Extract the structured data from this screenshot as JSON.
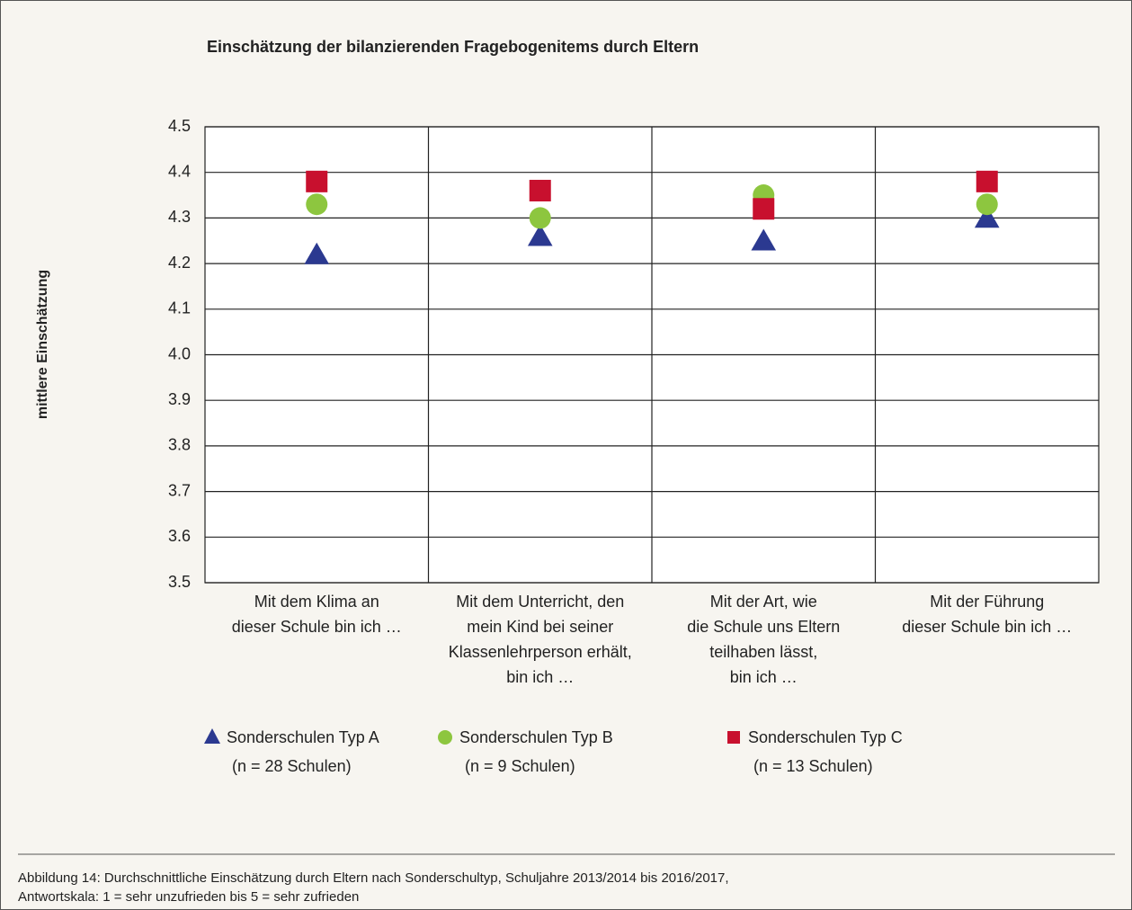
{
  "chart_data": {
    "type": "dot",
    "title": "Einschätzung der bilanzierenden Fragebogenitems durch Eltern",
    "y_label": "mittlere Einschätzung",
    "categories": [
      "Mit dem Klima an\ndieser Schule bin ich …",
      "Mit dem Unterricht, den\nmein Kind bei seiner\nKlassenlehrperson erhält,\nbin ich …",
      "Mit der Art, wie\ndie Schule uns Eltern\nteilhaben lässt,\nbin ich …",
      "Mit der Führung\ndieser Schule bin ich …"
    ],
    "series": [
      {
        "name": "Sonderschulen Typ A",
        "note": "(n = 28 Schulen)",
        "marker": "triangle",
        "color": "#2b3990",
        "values": [
          4.22,
          4.26,
          4.25,
          4.3
        ]
      },
      {
        "name": "Sonderschulen Typ B",
        "note": "(n = 9 Schulen)",
        "marker": "circle",
        "color": "#8dc63f",
        "values": [
          4.33,
          4.3,
          4.35,
          4.33
        ]
      },
      {
        "name": "Sonderschulen Typ C",
        "note": "(n = 13 Schulen)",
        "marker": "square",
        "color": "#c8102e",
        "values": [
          4.38,
          4.36,
          4.32,
          4.38
        ]
      }
    ],
    "ylim": [
      3.5,
      4.5
    ],
    "yticks": [
      3.5,
      3.6,
      3.7,
      3.8,
      3.9,
      {
        "value": 4,
        "label": "4.0"
      },
      4.1,
      4.2,
      4.3,
      4.4,
      4.5
    ],
    "grid": true,
    "caption": [
      "Abbildung 14: Durchschnittliche Einschätzung durch Eltern nach Sonderschultyp, Schuljahre 2013/2014 bis 2016/2017,",
      "Antwortskala: 1 = sehr unzufrieden bis 5 = sehr zufrieden"
    ]
  }
}
